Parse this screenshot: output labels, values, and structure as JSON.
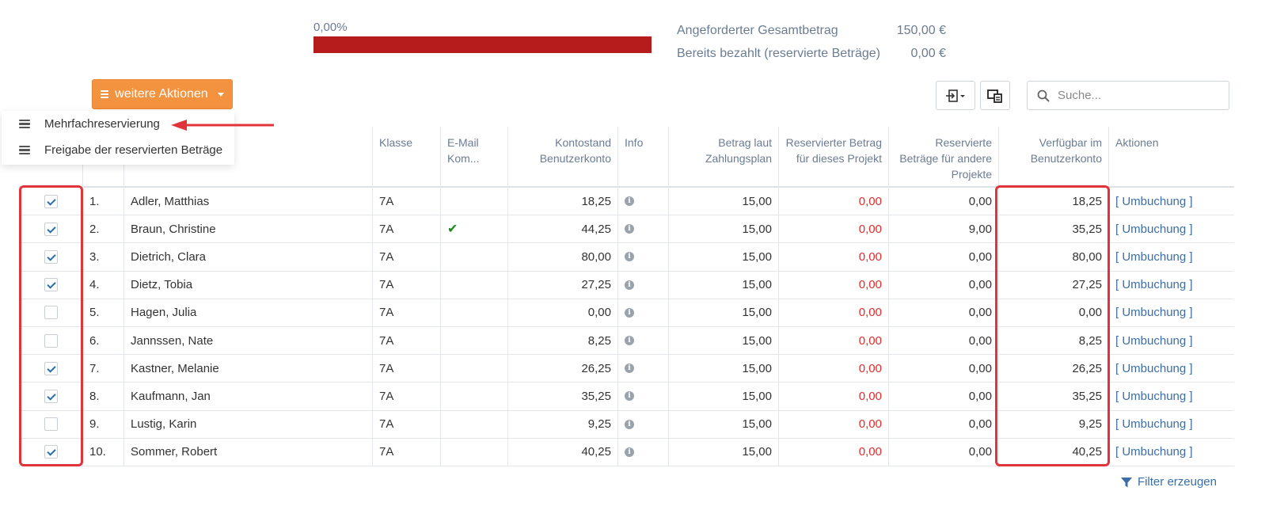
{
  "progress": {
    "label": "0,00%",
    "fraction": 1.0,
    "color": "#b71c1c"
  },
  "summary": [
    {
      "label": "Angeforderter Gesamtbetrag",
      "value": "150,00 €"
    },
    {
      "label": "Bereits bezahlt (reservierte Beträge)",
      "value": "0,00 €"
    }
  ],
  "actions_button": {
    "label": "weitere Aktionen",
    "color": "#f3923f"
  },
  "dropdown": {
    "items": [
      {
        "label": "Mehrfachreservierung",
        "icon": "list-icon"
      },
      {
        "label": "Freigabe der reservierten Beträge",
        "icon": "list-icon"
      }
    ]
  },
  "search": {
    "placeholder": "Suche..."
  },
  "columns": {
    "klasse": "Klasse",
    "email": "E-Mail Kom...",
    "kontostand": "Kontostand Benutzerkonto",
    "info": "Info",
    "betrag": "Betrag laut Zahlungsplan",
    "res_projekt": "Reservierter Betrag für dieses Projekt",
    "res_andere": "Reservierte Beträge für andere Projekte",
    "verfuegbar": "Verfügbar im Benutzerkonto",
    "aktionen": "Aktionen"
  },
  "rows": [
    {
      "checked": true,
      "nr": "1.",
      "name": "Adler, Matthias",
      "klasse": "7A",
      "email": false,
      "kontostand": "18,25",
      "betrag": "15,00",
      "res_projekt": "0,00",
      "res_andere": "0,00",
      "verfuegbar": "18,25",
      "aktion": "[ Umbuchung ]"
    },
    {
      "checked": true,
      "nr": "2.",
      "name": "Braun, Christine",
      "klasse": "7A",
      "email": true,
      "kontostand": "44,25",
      "betrag": "15,00",
      "res_projekt": "0,00",
      "res_andere": "9,00",
      "verfuegbar": "35,25",
      "aktion": "[ Umbuchung ]"
    },
    {
      "checked": true,
      "nr": "3.",
      "name": "Dietrich, Clara",
      "klasse": "7A",
      "email": false,
      "kontostand": "80,00",
      "betrag": "15,00",
      "res_projekt": "0,00",
      "res_andere": "0,00",
      "verfuegbar": "80,00",
      "aktion": "[ Umbuchung ]"
    },
    {
      "checked": true,
      "nr": "4.",
      "name": "Dietz, Tobia",
      "klasse": "7A",
      "email": false,
      "kontostand": "27,25",
      "betrag": "15,00",
      "res_projekt": "0,00",
      "res_andere": "0,00",
      "verfuegbar": "27,25",
      "aktion": "[ Umbuchung ]"
    },
    {
      "checked": false,
      "nr": "5.",
      "name": "Hagen, Julia",
      "klasse": "7A",
      "email": false,
      "kontostand": "0,00",
      "betrag": "15,00",
      "res_projekt": "0,00",
      "res_andere": "0,00",
      "verfuegbar": "0,00",
      "aktion": "[ Umbuchung ]"
    },
    {
      "checked": false,
      "nr": "6.",
      "name": "Jannssen, Nate",
      "klasse": "7A",
      "email": false,
      "kontostand": "8,25",
      "betrag": "15,00",
      "res_projekt": "0,00",
      "res_andere": "0,00",
      "verfuegbar": "8,25",
      "aktion": "[ Umbuchung ]"
    },
    {
      "checked": true,
      "nr": "7.",
      "name": "Kastner, Melanie",
      "klasse": "7A",
      "email": false,
      "kontostand": "26,25",
      "betrag": "15,00",
      "res_projekt": "0,00",
      "res_andere": "0,00",
      "verfuegbar": "26,25",
      "aktion": "[ Umbuchung ]"
    },
    {
      "checked": true,
      "nr": "8.",
      "name": "Kaufmann, Jan",
      "klasse": "7A",
      "email": false,
      "kontostand": "35,25",
      "betrag": "15,00",
      "res_projekt": "0,00",
      "res_andere": "0,00",
      "verfuegbar": "35,25",
      "aktion": "[ Umbuchung ]"
    },
    {
      "checked": false,
      "nr": "9.",
      "name": "Lustig, Karin",
      "klasse": "7A",
      "email": false,
      "kontostand": "9,25",
      "betrag": "15,00",
      "res_projekt": "0,00",
      "res_andere": "0,00",
      "verfuegbar": "9,25",
      "aktion": "[ Umbuchung ]"
    },
    {
      "checked": true,
      "nr": "10.",
      "name": "Sommer, Robert",
      "klasse": "7A",
      "email": false,
      "kontostand": "40,25",
      "betrag": "15,00",
      "res_projekt": "0,00",
      "res_andere": "0,00",
      "verfuegbar": "40,25",
      "aktion": "[ Umbuchung ]"
    }
  ],
  "filter_link": {
    "label": "Filter erzeugen",
    "icon": "funnel-icon"
  },
  "colors": {
    "accent_orange": "#f3923f",
    "negative_red": "#e52b2b",
    "link_blue": "#3b6ea8",
    "highlight_red": "#e0343a"
  }
}
